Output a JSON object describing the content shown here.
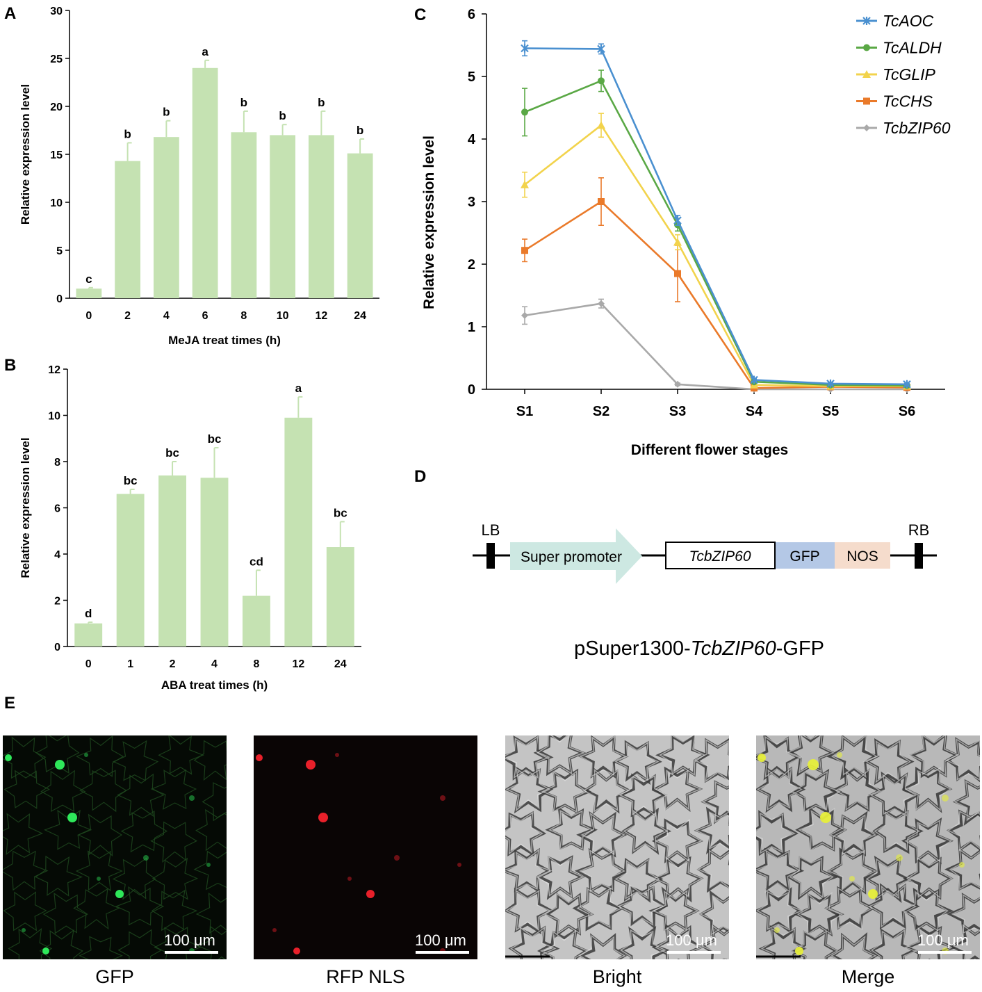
{
  "panels": {
    "A": {
      "letter": "A"
    },
    "B": {
      "letter": "B"
    },
    "C": {
      "letter": "C"
    },
    "D": {
      "letter": "D"
    },
    "E": {
      "letter": "E"
    }
  },
  "chart_data": [
    {
      "id": "A",
      "type": "bar",
      "xlabel": "MeJA treat times (h)",
      "ylabel": "Relative expression level",
      "categories": [
        "0",
        "2",
        "4",
        "6",
        "8",
        "10",
        "12",
        "24"
      ],
      "values": [
        1.0,
        14.3,
        16.8,
        24.0,
        17.3,
        17.0,
        17.0,
        15.1
      ],
      "errors": [
        0.1,
        1.9,
        1.7,
        0.8,
        2.2,
        1.1,
        2.5,
        1.5
      ],
      "letters": [
        "c",
        "b",
        "b",
        "a",
        "b",
        "b",
        "b",
        "b"
      ],
      "ylim": [
        0,
        30
      ],
      "yticks": [
        0,
        5,
        10,
        15,
        20,
        25,
        30
      ],
      "color": "#c5e2b2"
    },
    {
      "id": "B",
      "type": "bar",
      "xlabel": "ABA treat times (h)",
      "ylabel": "Relative expression level",
      "categories": [
        "0",
        "1",
        "2",
        "4",
        "8",
        "12",
        "24"
      ],
      "values": [
        1.0,
        6.6,
        7.4,
        7.3,
        2.2,
        9.9,
        4.3
      ],
      "errors": [
        0.05,
        0.2,
        0.6,
        1.3,
        1.1,
        0.9,
        1.1
      ],
      "letters": [
        "d",
        "bc",
        "bc",
        "bc",
        "cd",
        "a",
        "bc"
      ],
      "ylim": [
        0,
        12
      ],
      "yticks": [
        0,
        2,
        4,
        6,
        8,
        10,
        12
      ],
      "color": "#c5e2b2"
    },
    {
      "id": "C",
      "type": "line",
      "xlabel": "Different flower stages",
      "ylabel": "Relative expression level",
      "categories": [
        "S1",
        "S2",
        "S3",
        "S4",
        "S5",
        "S6"
      ],
      "ylim": [
        0,
        6
      ],
      "yticks": [
        0,
        1,
        2,
        3,
        4,
        5,
        6
      ],
      "legend_position": "top-right",
      "series": [
        {
          "name": "TcAOC",
          "color": "#4a90d0",
          "marker": "x",
          "values": [
            5.45,
            5.44,
            2.7,
            0.15,
            0.09,
            0.08
          ],
          "errors": [
            0.12,
            0.08,
            0.08,
            0.02,
            0.01,
            0.01
          ]
        },
        {
          "name": "TcALDH",
          "color": "#5aa845",
          "marker": "circle",
          "values": [
            4.43,
            4.93,
            2.63,
            0.12,
            0.07,
            0.06
          ],
          "errors": [
            0.38,
            0.17,
            0.1,
            0.02,
            0.01,
            0.01
          ]
        },
        {
          "name": "TcGLIP",
          "color": "#f2d34c",
          "marker": "triangle",
          "values": [
            3.27,
            4.22,
            2.35,
            0.07,
            0.05,
            0.05
          ],
          "errors": [
            0.2,
            0.19,
            0.12,
            0.02,
            0.01,
            0.01
          ]
        },
        {
          "name": "TcCHS",
          "color": "#ea7a2a",
          "marker": "square",
          "values": [
            2.22,
            3.0,
            1.85,
            0.02,
            0.04,
            0.03
          ],
          "errors": [
            0.18,
            0.38,
            0.45,
            0.01,
            0.01,
            0.01
          ]
        },
        {
          "name": "TcbZIP60",
          "color": "#a9a9a9",
          "marker": "diamond",
          "values": [
            1.18,
            1.37,
            0.08,
            0.0,
            0.0,
            0.0
          ],
          "errors": [
            0.14,
            0.07,
            0.02,
            0.0,
            0.0,
            0.0
          ]
        }
      ]
    }
  ],
  "construct": {
    "lb": "LB",
    "rb": "RB",
    "promoter": "Super promoter",
    "gene": "TcbZIP60",
    "gfp": "GFP",
    "nos": "NOS",
    "title_prefix": "pSuper1300-",
    "title_gene": "TcbZIP60",
    "title_suffix": "-GFP",
    "colors": {
      "promoter": "#cde8e2",
      "gfp": "#b4c8e6",
      "nos": "#f5dccc"
    }
  },
  "microscopy": [
    {
      "caption": "GFP",
      "scale_label": "100 μm",
      "channel": "green"
    },
    {
      "caption": "RFP NLS",
      "scale_label": "100 μm",
      "channel": "red"
    },
    {
      "caption": "Bright",
      "scale_label": "100 μm",
      "channel": "bright"
    },
    {
      "caption": "Merge",
      "scale_label": "100 μm",
      "channel": "merge"
    }
  ]
}
